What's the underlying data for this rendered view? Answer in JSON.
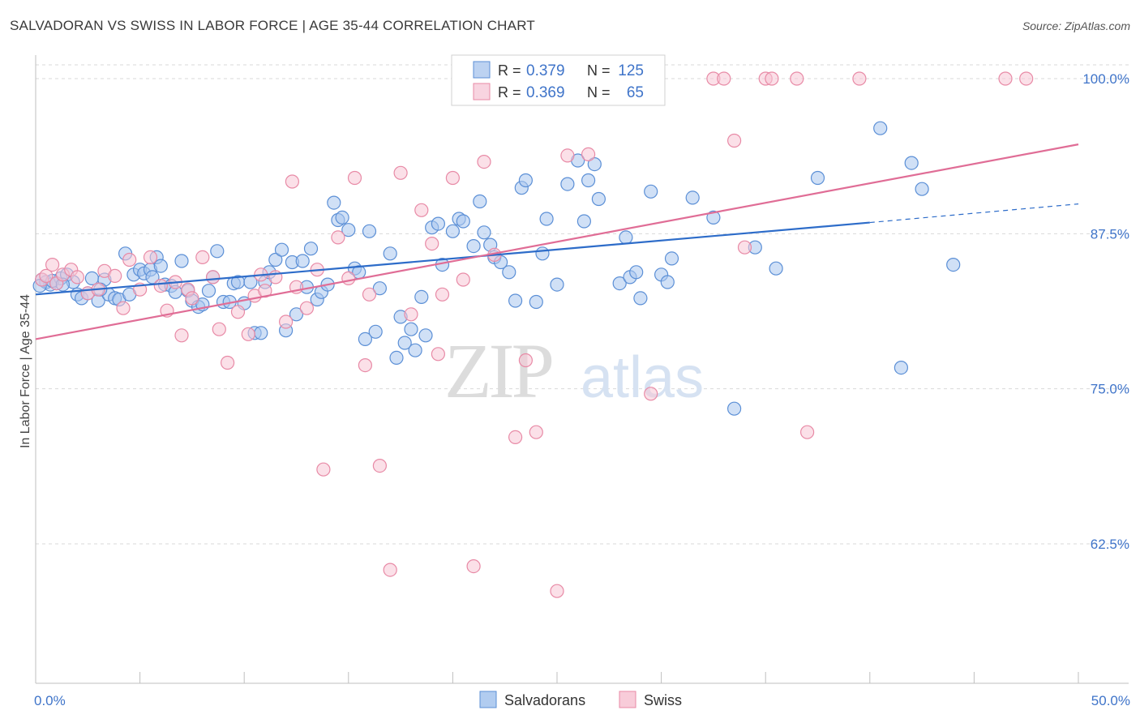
{
  "title": "SALVADORAN VS SWISS IN LABOR FORCE | AGE 35-44 CORRELATION CHART",
  "source": "Source: ZipAtlas.com",
  "watermark": {
    "zip": "ZIP",
    "atlas": "atlas"
  },
  "legend": {
    "rows": [
      {
        "r_label": "R = ",
        "r_value": "0.379",
        "n_label": "N = ",
        "n_value": "125",
        "color": "#8fb4e8",
        "stroke": "#5b8fd6"
      },
      {
        "r_label": "R = ",
        "r_value": "0.369",
        "n_label": "N = ",
        "n_value": "65",
        "color": "#f4b8cb",
        "stroke": "#e88aa6"
      }
    ]
  },
  "bottom_legend": [
    {
      "label": "Salvadorans",
      "color": "#a9c6ee",
      "stroke": "#5b8fd6"
    },
    {
      "label": "Swiss",
      "color": "#f7c6d5",
      "stroke": "#e88aa6"
    }
  ],
  "chart_data": {
    "type": "scatter",
    "xlabel": "",
    "ylabel": "In Labor Force | Age 35-44",
    "xlim": [
      0,
      50
    ],
    "ylim": [
      50,
      102.5
    ],
    "x_tick_labels": [
      "0.0%",
      "50.0%"
    ],
    "y_ticks": [
      62.5,
      75.0,
      87.5,
      100.0
    ],
    "y_tick_labels": [
      "62.5%",
      "75.0%",
      "87.5%",
      "100.0%"
    ],
    "grid": true,
    "series": [
      {
        "name": "Salvadorans",
        "color": "#5b8fd6",
        "fill": "#a9c6ee",
        "trend": {
          "x0": 0,
          "y0": 82.6,
          "x1": 40,
          "y1": 88.4,
          "dash_x1": 50,
          "dash_y1": 89.9,
          "color": "#2d6cc9"
        },
        "points": [
          [
            0.3,
            83.8
          ],
          [
            0.5,
            83.6
          ],
          [
            0.7,
            83.4
          ],
          [
            1.0,
            83.5
          ],
          [
            1.2,
            83.9
          ],
          [
            1.5,
            84.2
          ],
          [
            1.8,
            83.6
          ],
          [
            2.0,
            82.6
          ],
          [
            2.2,
            82.3
          ],
          [
            2.5,
            82.7
          ],
          [
            2.7,
            83.9
          ],
          [
            3.0,
            82.1
          ],
          [
            3.3,
            83.8
          ],
          [
            3.5,
            82.6
          ],
          [
            3.8,
            82.3
          ],
          [
            4.0,
            82.2
          ],
          [
            4.3,
            85.9
          ],
          [
            4.5,
            82.6
          ],
          [
            4.7,
            84.2
          ],
          [
            5.0,
            84.6
          ],
          [
            5.2,
            84.3
          ],
          [
            5.5,
            84.6
          ],
          [
            5.8,
            85.6
          ],
          [
            6.0,
            84.9
          ],
          [
            6.2,
            83.4
          ],
          [
            6.5,
            83.3
          ],
          [
            6.7,
            82.8
          ],
          [
            7.0,
            85.3
          ],
          [
            7.3,
            82.9
          ],
          [
            7.5,
            82.1
          ],
          [
            7.8,
            81.6
          ],
          [
            8.0,
            81.8
          ],
          [
            8.3,
            82.9
          ],
          [
            8.5,
            84.0
          ],
          [
            8.7,
            86.1
          ],
          [
            9.0,
            82.0
          ],
          [
            9.3,
            82.0
          ],
          [
            9.5,
            83.5
          ],
          [
            9.7,
            83.6
          ],
          [
            10.0,
            81.9
          ],
          [
            10.3,
            83.6
          ],
          [
            10.5,
            79.5
          ],
          [
            10.8,
            79.5
          ],
          [
            11.0,
            83.6
          ],
          [
            11.2,
            84.4
          ],
          [
            11.5,
            85.4
          ],
          [
            11.8,
            86.2
          ],
          [
            12.0,
            79.7
          ],
          [
            12.3,
            85.2
          ],
          [
            12.5,
            81.0
          ],
          [
            12.8,
            85.3
          ],
          [
            13.0,
            83.2
          ],
          [
            13.2,
            86.3
          ],
          [
            13.5,
            82.2
          ],
          [
            13.7,
            82.8
          ],
          [
            14.0,
            83.4
          ],
          [
            14.3,
            90.0
          ],
          [
            14.5,
            88.6
          ],
          [
            14.7,
            88.8
          ],
          [
            15.0,
            87.8
          ],
          [
            15.3,
            84.7
          ],
          [
            15.5,
            84.4
          ],
          [
            15.8,
            79.0
          ],
          [
            16.0,
            87.7
          ],
          [
            16.3,
            79.6
          ],
          [
            16.5,
            83.1
          ],
          [
            17.0,
            85.9
          ],
          [
            17.3,
            77.5
          ],
          [
            17.5,
            80.8
          ],
          [
            17.7,
            78.7
          ],
          [
            18.0,
            79.8
          ],
          [
            18.2,
            78.1
          ],
          [
            18.5,
            82.4
          ],
          [
            18.7,
            79.3
          ],
          [
            19.0,
            88.0
          ],
          [
            19.3,
            88.3
          ],
          [
            19.5,
            85.0
          ],
          [
            20.0,
            87.7
          ],
          [
            20.3,
            88.7
          ],
          [
            20.5,
            88.5
          ],
          [
            21.0,
            86.5
          ],
          [
            21.3,
            90.1
          ],
          [
            21.5,
            87.6
          ],
          [
            21.8,
            86.6
          ],
          [
            22.0,
            85.6
          ],
          [
            22.3,
            85.2
          ],
          [
            22.7,
            84.4
          ],
          [
            23.0,
            82.1
          ],
          [
            23.3,
            91.2
          ],
          [
            23.5,
            91.8
          ],
          [
            24.0,
            82.0
          ],
          [
            24.3,
            85.9
          ],
          [
            24.5,
            88.7
          ],
          [
            25.0,
            83.4
          ],
          [
            25.5,
            91.5
          ],
          [
            26.0,
            93.4
          ],
          [
            26.3,
            88.5
          ],
          [
            26.5,
            91.8
          ],
          [
            26.8,
            93.1
          ],
          [
            27.0,
            90.3
          ],
          [
            28.0,
            83.5
          ],
          [
            28.3,
            87.2
          ],
          [
            28.5,
            84.0
          ],
          [
            28.8,
            84.4
          ],
          [
            29.0,
            82.3
          ],
          [
            29.5,
            90.9
          ],
          [
            30.0,
            84.2
          ],
          [
            30.3,
            83.6
          ],
          [
            30.5,
            85.5
          ],
          [
            31.5,
            90.4
          ],
          [
            32.5,
            88.8
          ],
          [
            33.5,
            73.4
          ],
          [
            34.5,
            86.4
          ],
          [
            35.5,
            84.7
          ],
          [
            37.5,
            92.0
          ],
          [
            40.5,
            96.0
          ],
          [
            41.5,
            76.7
          ],
          [
            42.0,
            93.2
          ],
          [
            42.5,
            91.1
          ],
          [
            44.0,
            85.0
          ],
          [
            0.2,
            83.3
          ],
          [
            0.8,
            83.7
          ],
          [
            1.3,
            83.4
          ],
          [
            3.1,
            83.0
          ],
          [
            5.6,
            84.0
          ]
        ]
      },
      {
        "name": "Swiss",
        "color": "#e88aa6",
        "fill": "#f7c6d5",
        "trend": {
          "x0": 0,
          "y0": 79.0,
          "x1": 50,
          "y1": 94.7,
          "color": "#e06d96"
        },
        "points": [
          [
            0.3,
            83.8
          ],
          [
            0.5,
            84.1
          ],
          [
            0.8,
            85.0
          ],
          [
            1.0,
            83.5
          ],
          [
            1.3,
            84.2
          ],
          [
            1.7,
            84.6
          ],
          [
            2.0,
            84.0
          ],
          [
            2.5,
            82.7
          ],
          [
            3.0,
            83.0
          ],
          [
            3.3,
            84.5
          ],
          [
            3.8,
            84.1
          ],
          [
            4.2,
            81.5
          ],
          [
            4.5,
            85.4
          ],
          [
            5.0,
            83.0
          ],
          [
            5.5,
            85.6
          ],
          [
            6.0,
            83.3
          ],
          [
            6.3,
            81.3
          ],
          [
            6.7,
            83.6
          ],
          [
            7.0,
            79.3
          ],
          [
            7.3,
            83.0
          ],
          [
            7.5,
            82.3
          ],
          [
            8.0,
            85.6
          ],
          [
            8.5,
            84.0
          ],
          [
            8.8,
            79.8
          ],
          [
            9.2,
            77.1
          ],
          [
            9.7,
            81.2
          ],
          [
            10.2,
            79.4
          ],
          [
            10.5,
            82.5
          ],
          [
            10.8,
            84.2
          ],
          [
            11.0,
            82.9
          ],
          [
            11.5,
            84.0
          ],
          [
            12.0,
            80.4
          ],
          [
            12.3,
            91.7
          ],
          [
            12.5,
            83.2
          ],
          [
            13.0,
            81.5
          ],
          [
            13.5,
            84.6
          ],
          [
            13.8,
            68.5
          ],
          [
            14.5,
            87.2
          ],
          [
            15.0,
            83.9
          ],
          [
            15.3,
            92.0
          ],
          [
            15.8,
            76.9
          ],
          [
            16.0,
            82.6
          ],
          [
            16.5,
            68.8
          ],
          [
            17.0,
            60.4
          ],
          [
            17.5,
            92.4
          ],
          [
            18.0,
            81.0
          ],
          [
            18.5,
            89.4
          ],
          [
            19.0,
            86.7
          ],
          [
            19.3,
            77.8
          ],
          [
            19.5,
            82.6
          ],
          [
            20.0,
            92.0
          ],
          [
            20.5,
            83.8
          ],
          [
            21.0,
            60.7
          ],
          [
            21.5,
            93.3
          ],
          [
            22.0,
            85.8
          ],
          [
            23.0,
            71.1
          ],
          [
            23.5,
            77.3
          ],
          [
            24.0,
            71.5
          ],
          [
            25.0,
            58.7
          ],
          [
            25.5,
            93.8
          ],
          [
            26.5,
            93.9
          ],
          [
            29.5,
            74.6
          ],
          [
            33.5,
            95.0
          ],
          [
            34.0,
            86.4
          ],
          [
            37.0,
            71.5
          ]
        ]
      },
      {
        "name": "",
        "color": "#e88aa6",
        "fill": "#f7c6d5",
        "points": [
          [
            32.5,
            100.0
          ],
          [
            33.0,
            100.0
          ],
          [
            35.0,
            100.0
          ],
          [
            35.3,
            100.0
          ],
          [
            36.5,
            100.0
          ],
          [
            39.5,
            100.0
          ],
          [
            46.5,
            100.0
          ],
          [
            47.5,
            100.0
          ]
        ]
      }
    ]
  }
}
